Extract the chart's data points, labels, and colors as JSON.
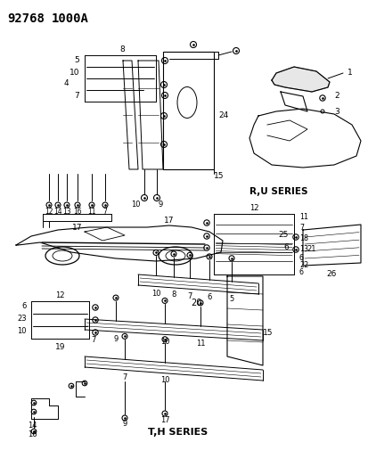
{
  "title_part1": "92768",
  "title_part2": "1000A",
  "bg": "#ffffff",
  "lc": "#000000",
  "ru_series": "R,U SERIES",
  "th_series": "T,H SERIES",
  "fig_w": 4.14,
  "fig_h": 5.33,
  "dpi": 100,
  "parts": {
    "callout_box_RU": {
      "labels": [
        "8",
        "5",
        "10",
        "4",
        "7"
      ]
    },
    "strip_bottom_RU": {
      "labels": [
        "12",
        "14",
        "13",
        "16",
        "11",
        "7",
        "17"
      ]
    },
    "strip_main_RU": {
      "labels": [
        "10",
        "9",
        "15",
        "24"
      ]
    },
    "spoiler_RU": {
      "labels": [
        "1",
        "2",
        "3"
      ]
    },
    "mid_box": {
      "labels": [
        "12",
        "11",
        "7",
        "18",
        "13",
        "21",
        "6",
        "22",
        "6"
      ]
    },
    "mid_strip": {
      "labels": [
        "10",
        "8",
        "7",
        "6",
        "5",
        "20"
      ]
    },
    "callout_box_TH": {
      "labels": [
        "12",
        "6",
        "23",
        "10",
        "7",
        "19"
      ]
    },
    "strip_TH1": {
      "labels": [
        "9",
        "10",
        "11",
        "15"
      ]
    },
    "strip_TH2": {
      "labels": [
        "7",
        "10",
        "9",
        "17"
      ]
    },
    "bracket_TH": {
      "labels": [
        "14",
        "16"
      ]
    },
    "rstrip_mid": {
      "labels": [
        "25",
        "6",
        "26"
      ]
    }
  }
}
